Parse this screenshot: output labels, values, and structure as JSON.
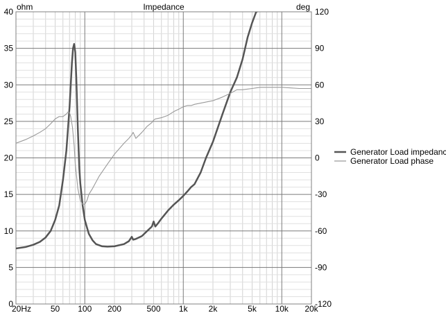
{
  "chart_data": {
    "type": "line",
    "title": "Impedance",
    "ylabel": "ohm",
    "y2label": "deg",
    "xscale": "log",
    "xlim": [
      20,
      20000
    ],
    "ylim": [
      0,
      40
    ],
    "y2lim": [
      -120,
      120
    ],
    "grid": true,
    "legend_position": "right",
    "x_tick_labels": [
      {
        "value": 20,
        "label": "20Hz"
      },
      {
        "value": 50,
        "label": "50"
      },
      {
        "value": 100,
        "label": "100"
      },
      {
        "value": 200,
        "label": "200"
      },
      {
        "value": 500,
        "label": "500"
      },
      {
        "value": 1000,
        "label": "1k"
      },
      {
        "value": 2000,
        "label": "2k"
      },
      {
        "value": 5000,
        "label": "5k"
      },
      {
        "value": 10000,
        "label": "10k"
      },
      {
        "value": 20000,
        "label": "20k"
      }
    ],
    "y_tick_labels": [
      "0",
      "5",
      "10",
      "15",
      "20",
      "25",
      "30",
      "35",
      "40"
    ],
    "y2_tick_labels": [
      "-120",
      "-90",
      "-60",
      "-30",
      "0",
      "30",
      "60",
      "90",
      "120"
    ],
    "series": [
      {
        "name": "Generator Load impedance",
        "axis": "left",
        "color": "#555555",
        "x": [
          20,
          25,
          30,
          35,
          40,
          45,
          50,
          55,
          60,
          65,
          70,
          72,
          74,
          76,
          78,
          80,
          82,
          85,
          88,
          90,
          95,
          100,
          105,
          110,
          120,
          130,
          150,
          170,
          200,
          250,
          280,
          300,
          310,
          330,
          380,
          430,
          480,
          500,
          520,
          550,
          600,
          700,
          800,
          900,
          1000,
          1100,
          1200,
          1300,
          1500,
          1700,
          2000,
          2500,
          3000,
          3500,
          4000,
          4500,
          5000,
          5500,
          6000
        ],
        "values": [
          7.6,
          7.8,
          8.1,
          8.5,
          9.1,
          10.0,
          11.5,
          13.5,
          17.0,
          21.0,
          27.0,
          30.0,
          33.0,
          35.0,
          35.6,
          34.5,
          31.0,
          24.0,
          18.5,
          16.5,
          13.5,
          11.5,
          10.5,
          9.6,
          8.7,
          8.2,
          7.9,
          7.85,
          7.9,
          8.2,
          8.6,
          9.2,
          8.8,
          8.9,
          9.3,
          10.0,
          10.6,
          11.3,
          10.6,
          11.0,
          11.7,
          12.8,
          13.6,
          14.2,
          14.8,
          15.4,
          16.0,
          16.4,
          18.0,
          20.0,
          22.2,
          26.0,
          29.0,
          31.0,
          33.5,
          36.5,
          38.5,
          40.0,
          41.0
        ]
      },
      {
        "name": "Generator Load phase",
        "axis": "right",
        "color": "#999999",
        "x": [
          20,
          25,
          30,
          35,
          40,
          45,
          50,
          55,
          60,
          65,
          68,
          70,
          72,
          75,
          78,
          80,
          85,
          90,
          95,
          100,
          105,
          110,
          120,
          140,
          170,
          200,
          250,
          280,
          300,
          310,
          330,
          380,
          430,
          480,
          500,
          520,
          600,
          700,
          800,
          900,
          1000,
          1100,
          1200,
          1300,
          1500,
          2000,
          2500,
          3000,
          3500,
          4000,
          5000,
          6000,
          8000,
          10000,
          15000,
          20000
        ],
        "values": [
          12,
          15,
          18,
          21,
          24,
          28,
          32,
          34,
          34,
          36,
          38,
          37,
          34,
          25,
          10,
          -5,
          -25,
          -35,
          -38,
          -38,
          -35,
          -30,
          -25,
          -15,
          -5,
          3,
          12,
          16,
          19,
          21,
          16,
          21,
          26,
          29,
          31,
          32,
          33,
          35,
          38,
          40,
          42,
          43,
          43,
          44,
          45,
          47,
          50,
          53,
          56,
          56,
          57,
          58,
          58,
          58,
          57,
          57
        ]
      }
    ]
  }
}
